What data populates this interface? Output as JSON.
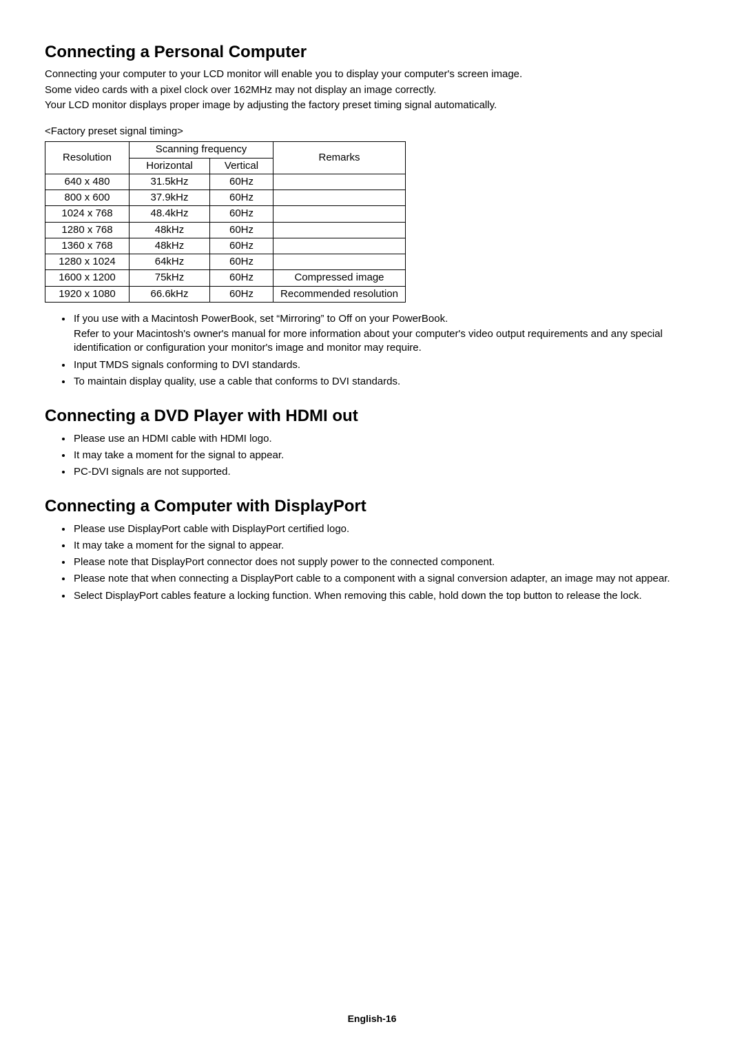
{
  "section1": {
    "title": "Connecting a Personal Computer",
    "intro": [
      "Connecting your computer to your LCD monitor will enable you to display your computer's screen image.",
      "Some video cards with a pixel clock over 162MHz may not display an image correctly.",
      "Your LCD monitor displays proper image by adjusting the factory preset timing signal automatically."
    ],
    "tableCaption": "<Factory preset signal timing>",
    "table": {
      "headers": {
        "resolution": "Resolution",
        "scanningFrequency": "Scanning frequency",
        "horizontal": "Horizontal",
        "vertical": "Vertical",
        "remarks": "Remarks"
      },
      "rows": [
        {
          "res": "640 x 480",
          "h": "31.5kHz",
          "v": "60Hz",
          "rem": ""
        },
        {
          "res": "800 x 600",
          "h": "37.9kHz",
          "v": "60Hz",
          "rem": ""
        },
        {
          "res": "1024 x 768",
          "h": "48.4kHz",
          "v": "60Hz",
          "rem": ""
        },
        {
          "res": "1280 x 768",
          "h": "48kHz",
          "v": "60Hz",
          "rem": ""
        },
        {
          "res": "1360 x 768",
          "h": "48kHz",
          "v": "60Hz",
          "rem": ""
        },
        {
          "res": "1280 x 1024",
          "h": "64kHz",
          "v": "60Hz",
          "rem": ""
        },
        {
          "res": "1600 x 1200",
          "h": "75kHz",
          "v": "60Hz",
          "rem": "Compressed image"
        },
        {
          "res": "1920 x 1080",
          "h": "66.6kHz",
          "v": "60Hz",
          "rem": "Recommended resolution"
        }
      ]
    },
    "bullets": [
      {
        "text": "If you use with a Macintosh PowerBook, set “Mirroring” to Off on your PowerBook.",
        "sub": "Refer to your Macintosh's owner's manual for more information about your computer's video output requirements and any special identification or configuration your monitor's image and monitor may require."
      },
      {
        "text": "Input TMDS signals conforming to DVI standards."
      },
      {
        "text": "To maintain display quality, use a cable that conforms to DVI standards."
      }
    ]
  },
  "section2": {
    "title": "Connecting a DVD Player with HDMI out",
    "bullets": [
      "Please use an HDMI cable with HDMI logo.",
      "It may take a moment for the signal to appear.",
      "PC-DVI signals are not supported."
    ]
  },
  "section3": {
    "title": "Connecting a Computer with DisplayPort",
    "bullets": [
      "Please use DisplayPort cable with DisplayPort certified logo.",
      "It may take a moment for the signal to appear.",
      "Please note that DisplayPort connector does not supply power to the connected component.",
      "Please note that when connecting a DisplayPort cable to a component with a signal conversion adapter, an image may not appear.",
      "Select DisplayPort cables feature a locking function. When removing this cable, hold down the top button to release the lock."
    ]
  },
  "footer": "English-16"
}
